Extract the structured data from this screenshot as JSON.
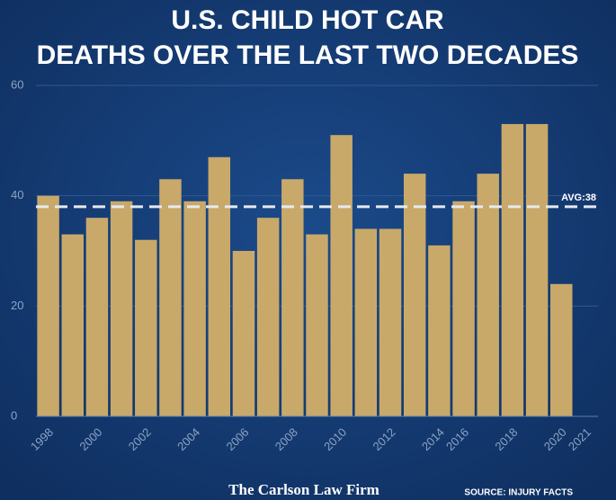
{
  "chart_data": {
    "type": "bar",
    "title": [
      "U.S. CHILD HOT CAR",
      "DEATHS OVER THE LAST TWO DECADES"
    ],
    "categories": [
      "1998",
      null,
      "2000",
      null,
      "2002",
      null,
      "2004",
      null,
      "2006",
      null,
      "2008",
      null,
      "2010",
      null,
      "2012",
      null,
      "2014",
      "2016",
      null,
      "2018",
      null,
      "2020",
      "2021"
    ],
    "values": [
      40,
      33,
      36,
      39,
      32,
      43,
      39,
      47,
      30,
      36,
      43,
      33,
      51,
      34,
      34,
      44,
      31,
      39,
      44,
      53,
      53,
      24,
      null
    ],
    "color": "#c8a96a",
    "ylim": [
      0,
      60
    ],
    "yticks": [
      0,
      20,
      40,
      60
    ],
    "grid": true,
    "average": {
      "value": 38,
      "label": "AVG:38"
    },
    "footer": "The Carlson Law Firm",
    "source": "SOURCE: INJURY FACTS"
  }
}
